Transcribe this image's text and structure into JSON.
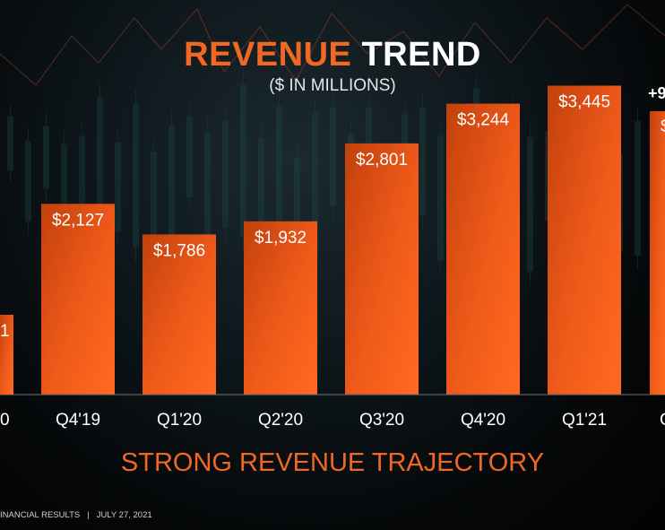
{
  "slide": {
    "title_accent": "REVENUE",
    "title_rest": "TREND",
    "subtitle": "($ IN MILLIONS)",
    "tagline": "STRONG REVENUE TRAJECTORY",
    "footer_left": "INANCIAL RESULTS",
    "footer_sep": "|",
    "footer_date": "JULY 27, 2021",
    "accent_color": "#f26722"
  },
  "chart_data": {
    "type": "bar",
    "title": "REVENUE TREND",
    "subtitle": "($ IN MILLIONS)",
    "categories": [
      "Q4'19",
      "Q1'20",
      "Q2'20",
      "Q3'20",
      "Q4'20",
      "Q1'21"
    ],
    "values": [
      2127,
      1786,
      1932,
      2801,
      3244,
      3445
    ],
    "value_labels": [
      "$2,127",
      "$1,786",
      "$1,932",
      "$2,801",
      "$3,244",
      "$3,445"
    ],
    "partial_left": {
      "category_fragment": "0",
      "label_fragment": "1"
    },
    "partial_right": {
      "category_fragment": "C",
      "label_fragment": "$",
      "annotation_fragment": "+9"
    },
    "ylim": [
      0,
      4000
    ],
    "grid": false,
    "bar_color": "#f26722"
  }
}
